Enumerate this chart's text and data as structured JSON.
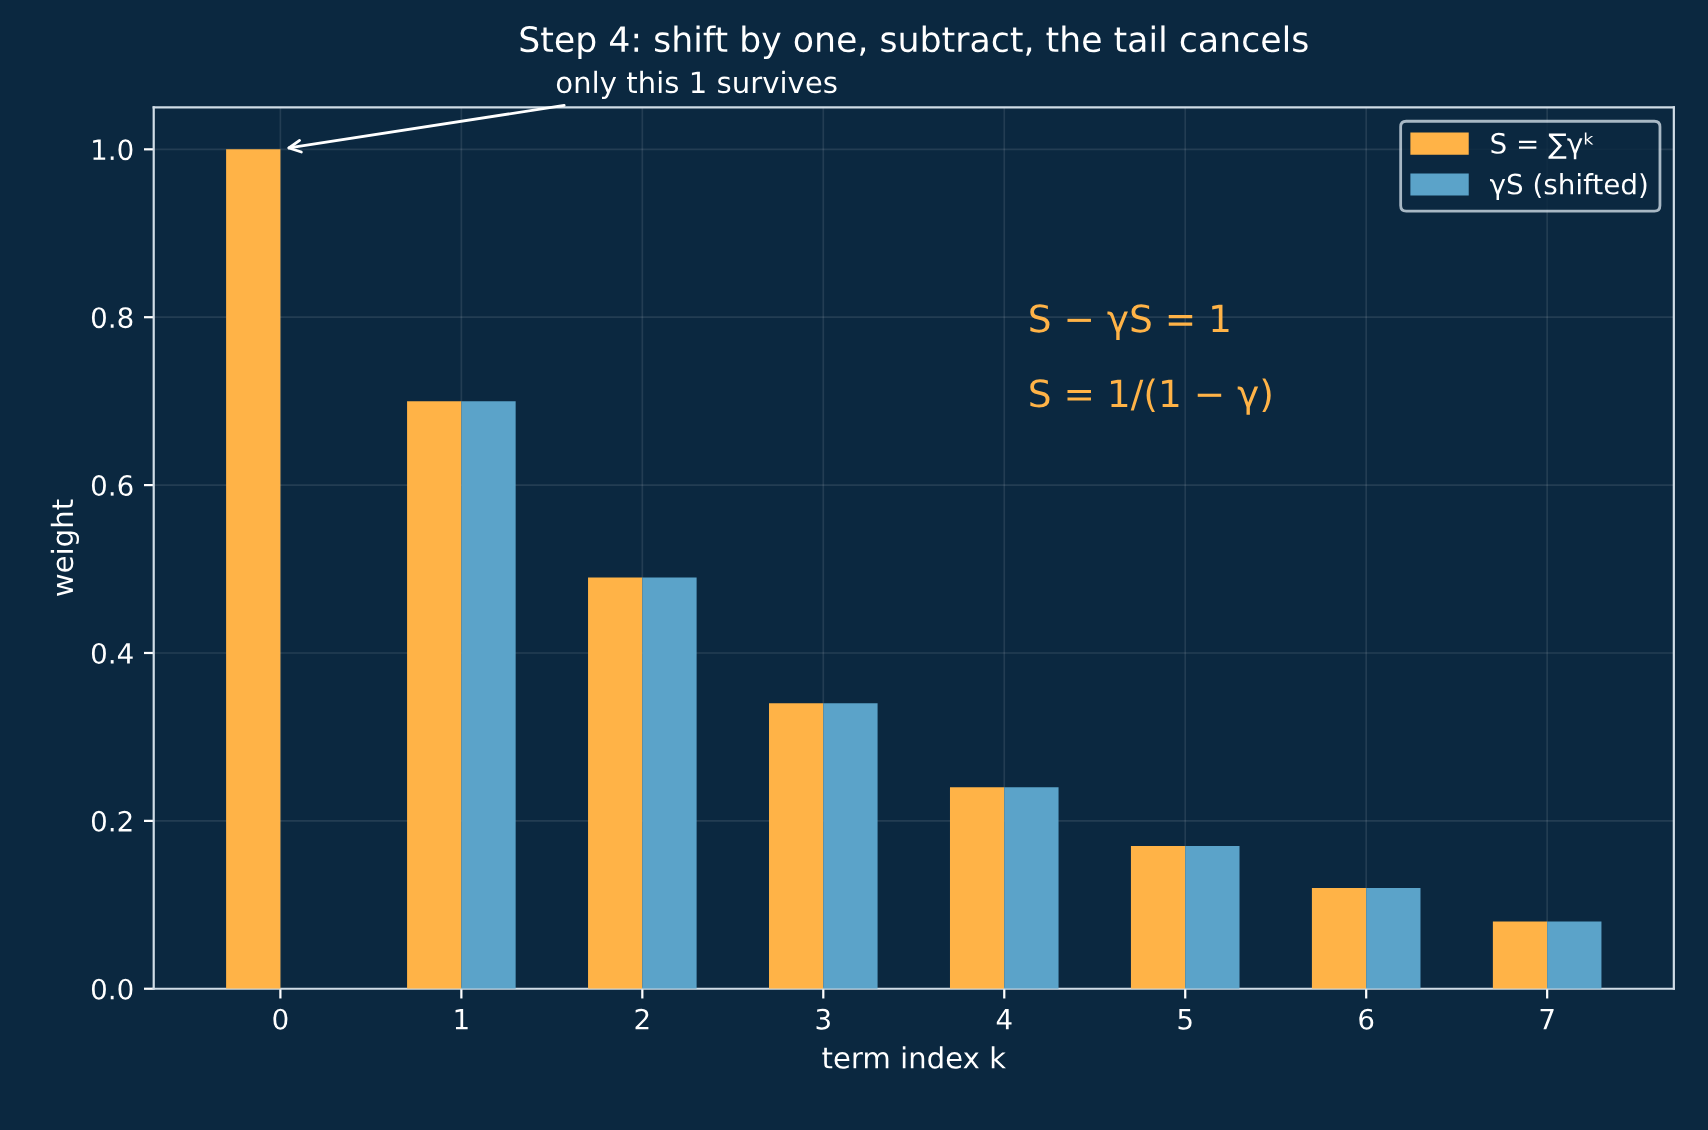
{
  "chart_data": {
    "type": "bar",
    "title": "Step 4: shift by one, subtract, the tail cancels",
    "xlabel": "term index k",
    "ylabel": "weight",
    "categories": [
      "0",
      "1",
      "2",
      "3",
      "4",
      "5",
      "6",
      "7"
    ],
    "series": [
      {
        "name": "S = ∑γᵏ",
        "color": "#ffb347",
        "values": [
          1.0,
          0.7,
          0.49,
          0.34,
          0.24,
          0.17,
          0.12,
          0.08
        ]
      },
      {
        "name": "γS (shifted)",
        "color": "#5ba3c9",
        "values": [
          null,
          0.7,
          0.49,
          0.34,
          0.24,
          0.17,
          0.12,
          0.08
        ]
      }
    ],
    "ylim": [
      0,
      1.05
    ],
    "yticks": [
      {
        "value": 0.0,
        "label": "0.0"
      },
      0.2,
      0.4,
      0.6,
      0.8,
      {
        "value": 1.0,
        "label": "1.0"
      }
    ],
    "grid": true,
    "legend": "top right",
    "annotations": [
      {
        "text": "only this 1 survives",
        "x": "0",
        "y": 1.0
      },
      "S − γS = 1",
      "S = 1/(1 − γ)"
    ]
  }
}
